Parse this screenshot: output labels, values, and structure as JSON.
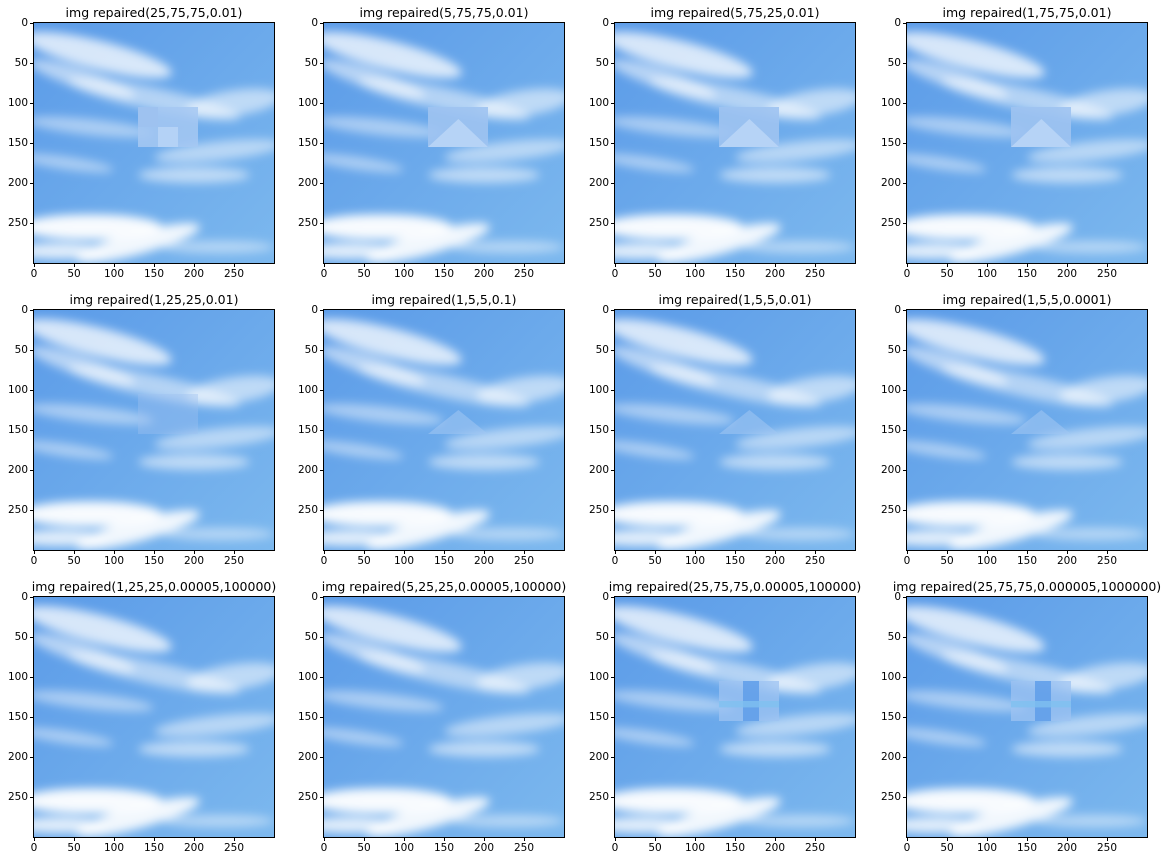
{
  "figure": {
    "panels": [
      {
        "title": "img repaired(25,75,75,0.01)",
        "patch": "blocky"
      },
      {
        "title": "img repaired(5,75,75,0.01)",
        "patch": "chevron"
      },
      {
        "title": "img repaired(5,75,25,0.01)",
        "patch": "chevron"
      },
      {
        "title": "img repaired(1,75,75,0.01)",
        "patch": "chevron"
      },
      {
        "title": "img repaired(1,25,25,0.01)",
        "patch": "faint"
      },
      {
        "title": "img repaired(1,5,5,0.1)",
        "patch": "faint-chevron"
      },
      {
        "title": "img repaired(1,5,5,0.01)",
        "patch": "faint-chevron"
      },
      {
        "title": "img repaired(1,5,5,0.0001)",
        "patch": "faint-chevron"
      },
      {
        "title": "img repaired(1,25,25,0.00005,100000)",
        "patch": "none"
      },
      {
        "title": "img repaired(5,25,25,0.00005,100000)",
        "patch": "none"
      },
      {
        "title": "img repaired(25,75,75,0.00005,100000)",
        "patch": "split"
      },
      {
        "title": "img repaired(25,75,75,0.000005,1000000)",
        "patch": "split"
      }
    ],
    "y_ticks": [
      "0",
      "50",
      "100",
      "150",
      "200",
      "250"
    ],
    "x_ticks": [
      "0",
      "50",
      "100",
      "150",
      "200",
      "250"
    ],
    "colors": {
      "sky_top": "#5b9be8",
      "sky_bottom": "#7cb8ee",
      "cloud": "#ffffff"
    }
  }
}
